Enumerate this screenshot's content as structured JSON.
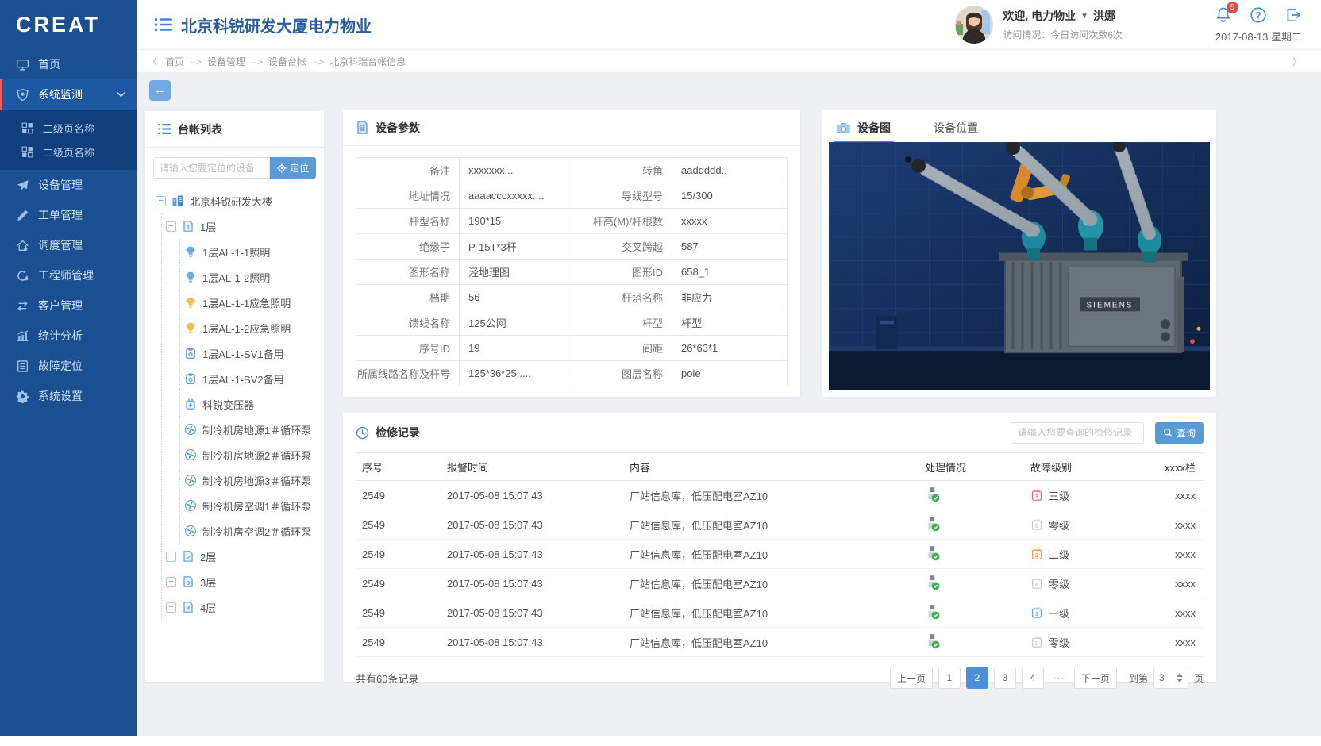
{
  "app": {
    "logo": "CREAT"
  },
  "colors": {
    "accent": "#4a90d9",
    "sidebar": "#1a5091",
    "active_marker": "#f05b5b",
    "button_blue": "#5b9bd5"
  },
  "sidebar": {
    "items": [
      {
        "label": "首页",
        "icon": "monitor-icon"
      },
      {
        "label": "系统监测",
        "icon": "shield-icon",
        "active": true,
        "expanded": true
      },
      {
        "label": "二级页名称",
        "icon": "grid-icon",
        "sub": true
      },
      {
        "label": "二级页名称",
        "icon": "grid-icon",
        "sub": true
      },
      {
        "label": "设备管理",
        "icon": "send-icon"
      },
      {
        "label": "工单管理",
        "icon": "pencil-icon"
      },
      {
        "label": "调度管理",
        "icon": "home-icon"
      },
      {
        "label": "工程师管理",
        "icon": "engineer-icon"
      },
      {
        "label": "客户管理",
        "icon": "swap-icon"
      },
      {
        "label": "统计分析",
        "icon": "chart-icon"
      },
      {
        "label": "故障定位",
        "icon": "doc-list-icon"
      },
      {
        "label": "系统设置",
        "icon": "gear-icon"
      }
    ]
  },
  "header": {
    "title": "北京科锐研发大厦电力物业",
    "welcome": "欢迎, 电力物业",
    "username": "洪娜",
    "visit_info": "访问情况：今日访问次数6次",
    "notification_count": "5",
    "date": "2017-08-13 星期二"
  },
  "breadcrumb": {
    "separator": "-->",
    "items": [
      "首页",
      "设备管理",
      "设备台帐",
      "北京科瑞台帐信息"
    ]
  },
  "ledger_panel": {
    "title": "台帐列表",
    "search_placeholder": "请输入您要定位的设备",
    "locate_button": "定位",
    "tree": [
      {
        "level": 0,
        "icon": "building-icon",
        "label": "北京科锐研发大楼",
        "toggle": "minus"
      },
      {
        "level": 1,
        "icon": "floor-icon",
        "num": "1",
        "label": "1层",
        "toggle": "minus"
      },
      {
        "level": 2,
        "icon": "bulb-blue-icon",
        "label": "1层AL-1-1照明"
      },
      {
        "level": 2,
        "icon": "bulb-blue-icon",
        "label": "1层AL-1-2照明"
      },
      {
        "level": 2,
        "icon": "bulb-yellow-icon",
        "label": "1层AL-1-1应急照明"
      },
      {
        "level": 2,
        "icon": "bulb-yellow-icon",
        "label": "1层AL-1-2应急照明"
      },
      {
        "level": 2,
        "icon": "clipboard-icon",
        "label": "1层AL-1-SV1备用"
      },
      {
        "level": 2,
        "icon": "clipboard-icon",
        "label": "1层AL-1-SV2备用"
      },
      {
        "level": 2,
        "icon": "transformer-icon",
        "label": "科锐变压器"
      },
      {
        "level": 2,
        "icon": "pump-icon",
        "label": "制冷机房地源1＃循环泵"
      },
      {
        "level": 2,
        "icon": "pump-icon",
        "label": "制冷机房地源2＃循环泵"
      },
      {
        "level": 2,
        "icon": "pump-icon",
        "label": "制冷机房地源3＃循环泵"
      },
      {
        "level": 2,
        "icon": "pump-icon",
        "label": "制冷机房空调1＃循环泵"
      },
      {
        "level": 2,
        "icon": "pump-icon",
        "label": "制冷机房空调2＃循环泵"
      },
      {
        "level": 1,
        "icon": "floor-icon",
        "num": "2",
        "label": "2层",
        "toggle": "plus"
      },
      {
        "level": 1,
        "icon": "floor-icon",
        "num": "3",
        "label": "3层",
        "toggle": "plus"
      },
      {
        "level": 1,
        "icon": "floor-icon",
        "num": "4",
        "label": "4层",
        "toggle": "plus"
      }
    ]
  },
  "params_panel": {
    "title": "设备参数",
    "rows": [
      {
        "l1": "备注",
        "v1": "xxxxxxx...",
        "l2": "转角",
        "v2": "aaddddd.."
      },
      {
        "l1": "地址情况",
        "v1": "aaaacccxxxxx....",
        "l2": "导线型号",
        "v2": "15/300"
      },
      {
        "l1": "杆型名称",
        "v1": "190*15",
        "l2": "杆高(M)/杆根数",
        "v2": "xxxxx"
      },
      {
        "l1": "绝缘子",
        "v1": "P-15T*3杆",
        "l2": "交叉跨越",
        "v2": "587"
      },
      {
        "l1": "图形名称",
        "v1": "泾地理图",
        "l2": "图形ID",
        "v2": "658_1"
      },
      {
        "l1": "档期",
        "v1": "56",
        "l2": "杆塔名称",
        "v2": "非应力"
      },
      {
        "l1": "馈线名称",
        "v1": "125公网",
        "l2": "杆型",
        "v2": "杆型"
      },
      {
        "l1": "序号ID",
        "v1": "19",
        "l2": "间距",
        "v2": "26*63*1"
      },
      {
        "l1": "所属线路名称及杆号",
        "v1": "125*36*25.....",
        "l2": "图层名称",
        "v2": "pole"
      }
    ]
  },
  "image_panel": {
    "tabs": [
      "设备图",
      "设备位置"
    ],
    "active_tab": 0,
    "brand": "SIEMENS"
  },
  "records_panel": {
    "title": "检修记录",
    "search_placeholder": "请输入您要查询的检修记录",
    "query_button": "查询",
    "columns": [
      "序号",
      "报警时间",
      "内容",
      "处理情况",
      "故障级别",
      "xxxx栏"
    ],
    "rows": [
      {
        "id": "2549",
        "time": "2017-05-08  15:07:43",
        "content": "厂站信息库，低压配电室AZ10",
        "status": "processed",
        "level": "三级",
        "level_num": "3",
        "level_color": "#e96a6a",
        "extra": "xxxx"
      },
      {
        "id": "2549",
        "time": "2017-05-08  15:07:43",
        "content": "厂站信息库，低压配电室AZ10",
        "status": "processed",
        "level": "零级",
        "level_num": "0",
        "level_color": "#c4cad1",
        "extra": "xxxx"
      },
      {
        "id": "2549",
        "time": "2017-05-08  15:07:43",
        "content": "厂站信息库，低压配电室AZ10",
        "status": "processed",
        "level": "二级",
        "level_num": "2",
        "level_color": "#f59a3d",
        "extra": "xxxx"
      },
      {
        "id": "2549",
        "time": "2017-05-08  15:07:43",
        "content": "厂站信息库，低压配电室AZ10",
        "status": "processed",
        "level": "零级",
        "level_num": "0",
        "level_color": "#c4cad1",
        "extra": "xxxx"
      },
      {
        "id": "2549",
        "time": "2017-05-08  15:07:43",
        "content": "厂站信息库，低压配电室AZ10",
        "status": "processed",
        "level": "一级",
        "level_num": "1",
        "level_color": "#4db3f0",
        "extra": "xxxx"
      },
      {
        "id": "2549",
        "time": "2017-05-08  15:07:43",
        "content": "厂站信息库，低压配电室AZ10",
        "status": "processed",
        "level": "零级",
        "level_num": "0",
        "level_color": "#c4cad1",
        "extra": "xxxx"
      }
    ],
    "footer": {
      "total": "共有60条记录",
      "prev": "上一页",
      "pages": [
        "1",
        "2",
        "3",
        "4"
      ],
      "active_page": "2",
      "ellipsis": "···",
      "next": "下一页",
      "goto_prefix": "到第",
      "goto_value": "3",
      "goto_suffix": "页"
    }
  }
}
